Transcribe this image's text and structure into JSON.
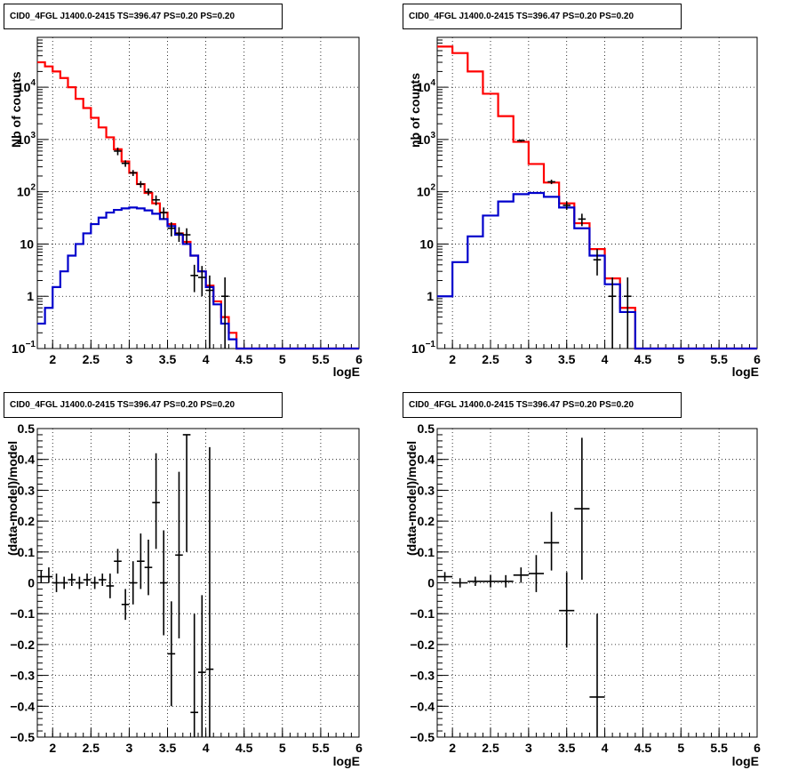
{
  "chart_data": [
    {
      "type": "histogram",
      "title": "CID0_4FGL J1400.0-2415 TS=396.47 PS=0.20 PS=0.20",
      "xlabel": "logE",
      "ylabel": "Nb of counts",
      "yscale": "log",
      "xlim": [
        1.8,
        6
      ],
      "ylim": [
        0.1,
        90000
      ],
      "grid": true,
      "x_ticks": [
        "2",
        "2.5",
        "3",
        "3.5",
        "4",
        "4.5",
        "5",
        "5.5",
        "6"
      ],
      "y_ticks": [
        {
          "value": 0.1,
          "base": "10",
          "exp": "−1"
        },
        {
          "value": 1,
          "label": "1"
        },
        {
          "value": 10,
          "label": "10"
        },
        {
          "value": 100,
          "base": "10",
          "exp": "2"
        },
        {
          "value": 1000,
          "base": "10",
          "exp": "3"
        },
        {
          "value": 10000,
          "base": "10",
          "exp": "4"
        }
      ],
      "bin_edges": [
        1.8,
        1.9,
        2.0,
        2.1,
        2.2,
        2.3,
        2.4,
        2.5,
        2.6,
        2.7,
        2.8,
        2.9,
        3.0,
        3.1,
        3.2,
        3.3,
        3.4,
        3.5,
        3.6,
        3.7,
        3.8,
        3.9,
        4.0,
        4.1,
        4.2,
        4.3,
        4.4,
        4.5,
        4.6,
        4.7,
        4.8,
        4.9,
        5.0,
        5.1,
        5.2,
        5.3,
        5.4,
        5.5,
        5.6,
        5.7,
        5.8,
        5.9,
        6.0
      ],
      "series": [
        {
          "color": "#ff0000",
          "values": [
            30000,
            25000,
            20000,
            15000,
            10000,
            6000,
            4000,
            2600,
            1700,
            1100,
            650,
            380,
            230,
            140,
            95,
            60,
            40,
            24,
            16,
            11,
            6,
            3,
            1.6,
            0.8,
            0.4,
            0.2,
            0.1,
            0.1,
            0.1,
            0.1,
            0.1,
            0.1,
            0.1,
            0.1,
            0.1,
            0.1,
            0.1,
            0.1,
            0.1,
            0.1,
            0.1,
            0.1
          ]
        },
        {
          "color": "#0000cc",
          "values": [
            0.3,
            0.6,
            1.5,
            3,
            6,
            10,
            16,
            24,
            32,
            40,
            45,
            48,
            50,
            48,
            44,
            38,
            30,
            22,
            15,
            10,
            6,
            3,
            1.5,
            0.7,
            0.3,
            0.15,
            0.1,
            0.1,
            0.1,
            0.1,
            0.1,
            0.1,
            0.1,
            0.1,
            0.1,
            0.1,
            0.1,
            0.1,
            0.1,
            0.1,
            0.1,
            0.1
          ]
        }
      ],
      "points": [
        {
          "x": 2.85,
          "y": 600,
          "elo": 500,
          "ehi": 700
        },
        {
          "x": 2.95,
          "y": 350,
          "elo": 300,
          "ehi": 400
        },
        {
          "x": 3.05,
          "y": 230,
          "elo": 200,
          "ehi": 260
        },
        {
          "x": 3.15,
          "y": 140,
          "elo": 120,
          "ehi": 160
        },
        {
          "x": 3.25,
          "y": 100,
          "elo": 85,
          "ehi": 115
        },
        {
          "x": 3.35,
          "y": 70,
          "elo": 55,
          "ehi": 85
        },
        {
          "x": 3.45,
          "y": 40,
          "elo": 30,
          "ehi": 50
        },
        {
          "x": 3.55,
          "y": 20,
          "elo": 14,
          "ehi": 26
        },
        {
          "x": 3.65,
          "y": 16,
          "elo": 11,
          "ehi": 21
        },
        {
          "x": 3.75,
          "y": 15,
          "elo": 10,
          "ehi": 20
        },
        {
          "x": 3.85,
          "y": 2.5,
          "elo": 1.2,
          "ehi": 4
        },
        {
          "x": 3.95,
          "y": 2.3,
          "elo": 1,
          "ehi": 3.8
        },
        {
          "x": 4.05,
          "y": 1.3,
          "elo": 0.1,
          "ehi": 2.5
        },
        {
          "x": 4.25,
          "y": 1,
          "elo": 0.1,
          "ehi": 2.3
        }
      ]
    },
    {
      "type": "histogram",
      "title": "CID0_4FGL J1400.0-2415 TS=396.47 PS=0.20 PS=0.20",
      "xlabel": "logE",
      "ylabel": "nb of counts",
      "yscale": "log",
      "xlim": [
        1.8,
        6
      ],
      "ylim": [
        0.1,
        90000
      ],
      "grid": true,
      "x_ticks": [
        "2",
        "2.5",
        "3",
        "3.5",
        "4",
        "4.5",
        "5",
        "5.5",
        "6"
      ],
      "y_ticks": [
        {
          "value": 0.1,
          "base": "10",
          "exp": "−1"
        },
        {
          "value": 1,
          "label": "1"
        },
        {
          "value": 10,
          "label": "10"
        },
        {
          "value": 100,
          "base": "10",
          "exp": "2"
        },
        {
          "value": 1000,
          "base": "10",
          "exp": "3"
        },
        {
          "value": 10000,
          "base": "10",
          "exp": "4"
        }
      ],
      "bin_edges": [
        1.8,
        2.0,
        2.2,
        2.4,
        2.6,
        2.8,
        3.0,
        3.2,
        3.4,
        3.6,
        3.8,
        4.0,
        4.2,
        4.4,
        4.6,
        4.8,
        5.0,
        5.2,
        5.4,
        5.6,
        5.8,
        6.0
      ],
      "series": [
        {
          "color": "#ff0000",
          "values": [
            60000,
            45000,
            20000,
            7500,
            2800,
            900,
            340,
            150,
            60,
            25,
            8,
            2.2,
            0.6,
            0.1,
            0.1,
            0.1,
            0.1,
            0.1,
            0.1,
            0.1,
            0.1
          ]
        },
        {
          "color": "#0000cc",
          "values": [
            1,
            4.5,
            14,
            35,
            65,
            90,
            95,
            80,
            50,
            20,
            6,
            1.7,
            0.5,
            0.1,
            0.1,
            0.1,
            0.1,
            0.1,
            0.1,
            0.1,
            0.1
          ]
        }
      ],
      "points": [
        {
          "x": 2.9,
          "y": 950,
          "elo": 900,
          "ehi": 1000
        },
        {
          "x": 3.3,
          "y": 155,
          "elo": 140,
          "ehi": 170
        },
        {
          "x": 3.5,
          "y": 55,
          "elo": 45,
          "ehi": 65
        },
        {
          "x": 3.7,
          "y": 30,
          "elo": 22,
          "ehi": 38
        },
        {
          "x": 3.9,
          "y": 5,
          "elo": 2.5,
          "ehi": 8
        },
        {
          "x": 4.1,
          "y": 1,
          "elo": 0.1,
          "ehi": 2.3
        },
        {
          "x": 4.3,
          "y": 1,
          "elo": 0.1,
          "ehi": 2.3
        }
      ]
    },
    {
      "type": "scatter",
      "title": "CID0_4FGL J1400.0-2415 TS=396.47 PS=0.20 PS=0.20",
      "xlabel": "logE",
      "ylabel": "(data-model)/model",
      "yscale": "linear",
      "xlim": [
        1.8,
        6
      ],
      "ylim": [
        -0.5,
        0.5
      ],
      "grid": true,
      "x_ticks": [
        "2",
        "2.5",
        "3",
        "3.5",
        "4",
        "4.5",
        "5",
        "5.5",
        "6"
      ],
      "y_tick_labels": [
        "−0.5",
        "−0.4",
        "−0.3",
        "−0.2",
        "−0.1",
        "0",
        "0.1",
        "0.2",
        "0.3",
        "0.4",
        "0.5"
      ],
      "xerr": 0.05,
      "points": [
        {
          "x": 1.85,
          "y": 0.02,
          "elo": 0.0,
          "ehi": 0.04
        },
        {
          "x": 1.95,
          "y": 0.02,
          "elo": 0.0,
          "ehi": 0.05
        },
        {
          "x": 2.05,
          "y": 0.0,
          "elo": -0.03,
          "ehi": 0.03
        },
        {
          "x": 2.15,
          "y": 0.0,
          "elo": -0.02,
          "ehi": 0.02
        },
        {
          "x": 2.25,
          "y": 0.01,
          "elo": -0.01,
          "ehi": 0.03
        },
        {
          "x": 2.35,
          "y": 0.0,
          "elo": -0.02,
          "ehi": 0.02
        },
        {
          "x": 2.45,
          "y": 0.01,
          "elo": -0.01,
          "ehi": 0.03
        },
        {
          "x": 2.55,
          "y": 0.0,
          "elo": -0.02,
          "ehi": 0.02
        },
        {
          "x": 2.65,
          "y": 0.01,
          "elo": -0.01,
          "ehi": 0.03
        },
        {
          "x": 2.75,
          "y": -0.01,
          "elo": -0.05,
          "ehi": 0.03
        },
        {
          "x": 2.85,
          "y": 0.07,
          "elo": 0.03,
          "ehi": 0.11
        },
        {
          "x": 2.95,
          "y": -0.07,
          "elo": -0.12,
          "ehi": -0.02
        },
        {
          "x": 3.05,
          "y": 0.0,
          "elo": -0.07,
          "ehi": 0.07
        },
        {
          "x": 3.15,
          "y": 0.07,
          "elo": -0.02,
          "ehi": 0.16
        },
        {
          "x": 3.25,
          "y": 0.05,
          "elo": -0.04,
          "ehi": 0.14
        },
        {
          "x": 3.35,
          "y": 0.26,
          "elo": 0.11,
          "ehi": 0.42
        },
        {
          "x": 3.45,
          "y": 0.0,
          "elo": -0.17,
          "ehi": 0.17
        },
        {
          "x": 3.55,
          "y": -0.23,
          "elo": -0.4,
          "ehi": -0.06
        },
        {
          "x": 3.65,
          "y": 0.09,
          "elo": -0.18,
          "ehi": 0.36
        },
        {
          "x": 3.75,
          "y": 0.48,
          "elo": 0.1,
          "ehi": 0.48
        },
        {
          "x": 3.85,
          "y": -0.42,
          "elo": -0.5,
          "ehi": -0.1
        },
        {
          "x": 3.95,
          "y": -0.29,
          "elo": -0.5,
          "ehi": -0.04
        },
        {
          "x": 4.05,
          "y": -0.28,
          "elo": -0.5,
          "ehi": 0.44
        }
      ]
    },
    {
      "type": "scatter",
      "title": "CID0_4FGL J1400.0-2415 TS=396.47 PS=0.20 PS=0.20",
      "xlabel": "logE",
      "ylabel": "(data-model)/model",
      "yscale": "linear",
      "xlim": [
        1.8,
        6
      ],
      "ylim": [
        -0.5,
        0.5
      ],
      "grid": true,
      "x_ticks": [
        "2",
        "2.5",
        "3",
        "3.5",
        "4",
        "4.5",
        "5",
        "5.5",
        "6"
      ],
      "y_tick_labels": [
        "−0.5",
        "−0.4",
        "−0.3",
        "−0.2",
        "−0.1",
        "0",
        "0.1",
        "0.2",
        "0.3",
        "0.4",
        "0.5"
      ],
      "xerr": 0.1,
      "points": [
        {
          "x": 1.9,
          "y": 0.02,
          "elo": 0.005,
          "ehi": 0.035
        },
        {
          "x": 2.1,
          "y": 0.0,
          "elo": -0.015,
          "ehi": 0.015
        },
        {
          "x": 2.3,
          "y": 0.005,
          "elo": -0.01,
          "ehi": 0.02
        },
        {
          "x": 2.5,
          "y": 0.005,
          "elo": -0.015,
          "ehi": 0.025
        },
        {
          "x": 2.7,
          "y": 0.005,
          "elo": -0.015,
          "ehi": 0.025
        },
        {
          "x": 2.9,
          "y": 0.025,
          "elo": 0.0,
          "ehi": 0.05
        },
        {
          "x": 3.1,
          "y": 0.03,
          "elo": -0.03,
          "ehi": 0.09
        },
        {
          "x": 3.3,
          "y": 0.13,
          "elo": 0.04,
          "ehi": 0.23
        },
        {
          "x": 3.5,
          "y": -0.09,
          "elo": -0.21,
          "ehi": 0.035
        },
        {
          "x": 3.7,
          "y": 0.24,
          "elo": 0.01,
          "ehi": 0.47
        },
        {
          "x": 3.9,
          "y": -0.37,
          "elo": -0.5,
          "ehi": -0.1
        }
      ]
    }
  ]
}
